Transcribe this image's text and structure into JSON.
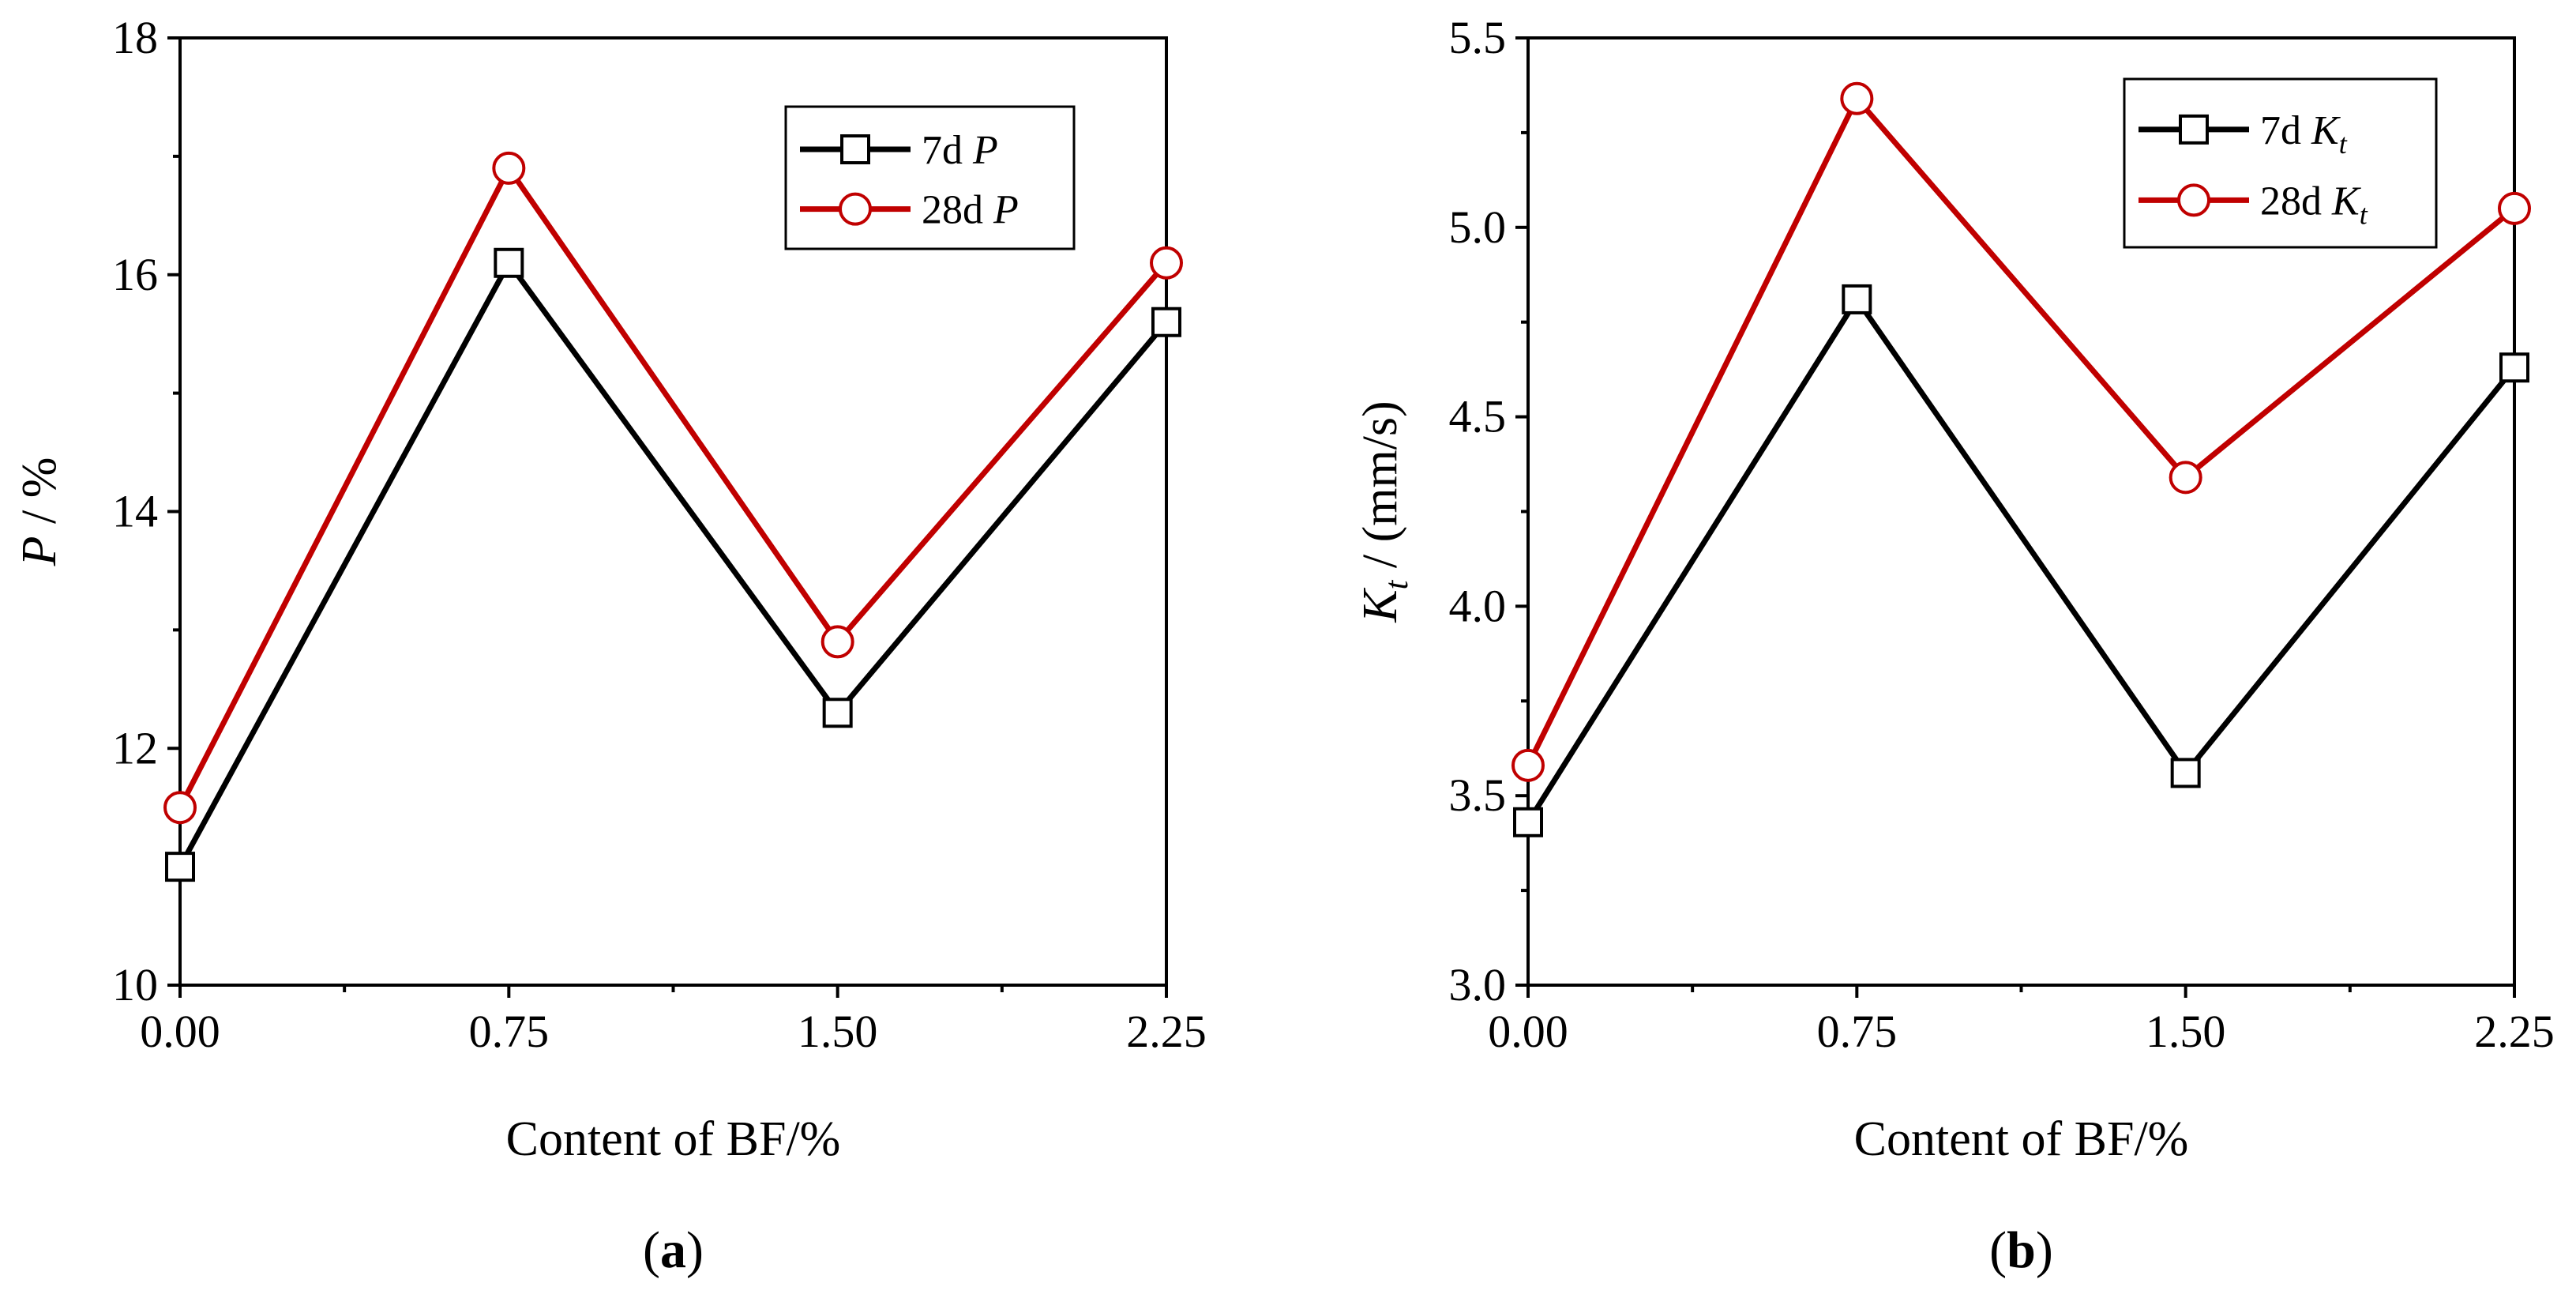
{
  "chart_data": [
    {
      "type": "line",
      "panel_label": "a",
      "xlabel": "Content of BF/%",
      "ylabel_symbol": "P",
      "ylabel_unit": " / %",
      "categories": [
        "0.00",
        "0.75",
        "1.50",
        "2.25"
      ],
      "x": [
        0.0,
        0.75,
        1.5,
        2.25
      ],
      "xlim": [
        0.0,
        2.25
      ],
      "ylim": [
        10,
        18
      ],
      "yticks": [
        10,
        12,
        14,
        16,
        18
      ],
      "ytick_labels": [
        "10",
        "12",
        "14",
        "16",
        "18"
      ],
      "legend_position": "top-right",
      "series": [
        {
          "name": "7d P",
          "legend_prefix": "7d ",
          "legend_symbol": "P",
          "legend_sub": "",
          "color": "#000000",
          "marker": "square",
          "values": [
            11.0,
            16.1,
            12.3,
            15.6
          ]
        },
        {
          "name": "28d P",
          "legend_prefix": "28d ",
          "legend_symbol": "P",
          "legend_sub": "",
          "color": "#c00000",
          "marker": "circle",
          "values": [
            11.5,
            16.9,
            12.9,
            16.1
          ]
        }
      ]
    },
    {
      "type": "line",
      "panel_label": "b",
      "xlabel": "Content of BF/%",
      "ylabel_symbol": "K",
      "ylabel_sub": "t",
      "ylabel_unit": " / (mm/s)",
      "categories": [
        "0.00",
        "0.75",
        "1.50",
        "2.25"
      ],
      "x": [
        0.0,
        0.75,
        1.5,
        2.25
      ],
      "xlim": [
        0.0,
        2.25
      ],
      "ylim": [
        3.0,
        5.5
      ],
      "yticks": [
        3.0,
        3.5,
        4.0,
        4.5,
        5.0,
        5.5
      ],
      "ytick_labels": [
        "3.0",
        "3.5",
        "4.0",
        "4.5",
        "5.0",
        "5.5"
      ],
      "legend_position": "top-right",
      "series": [
        {
          "name": "7d Kt",
          "legend_prefix": "7d ",
          "legend_symbol": "K",
          "legend_sub": "t",
          "color": "#000000",
          "marker": "square",
          "values": [
            3.43,
            4.81,
            3.56,
            4.63
          ]
        },
        {
          "name": "28d Kt",
          "legend_prefix": "28d ",
          "legend_symbol": "K",
          "legend_sub": "t",
          "color": "#c00000",
          "marker": "circle",
          "values": [
            3.58,
            5.34,
            4.34,
            5.05
          ]
        }
      ]
    }
  ]
}
